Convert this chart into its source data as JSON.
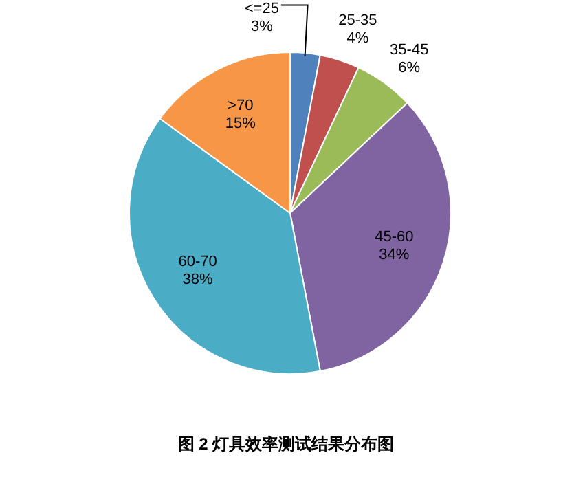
{
  "chart_data": {
    "type": "pie",
    "title": "图 2 灯具效率测试结果分布图",
    "categories": [
      "<=25",
      "25-35",
      "35-45",
      "45-60",
      "60-70",
      ">70"
    ],
    "values": [
      3,
      4,
      6,
      34,
      38,
      15
    ],
    "colors": [
      "#4f81bd",
      "#c0504d",
      "#9bbb59",
      "#8064a2",
      "#4bacc6",
      "#f79646"
    ],
    "value_labels": [
      "3%",
      "4%",
      "6%",
      "34%",
      "38%",
      "15%"
    ]
  }
}
